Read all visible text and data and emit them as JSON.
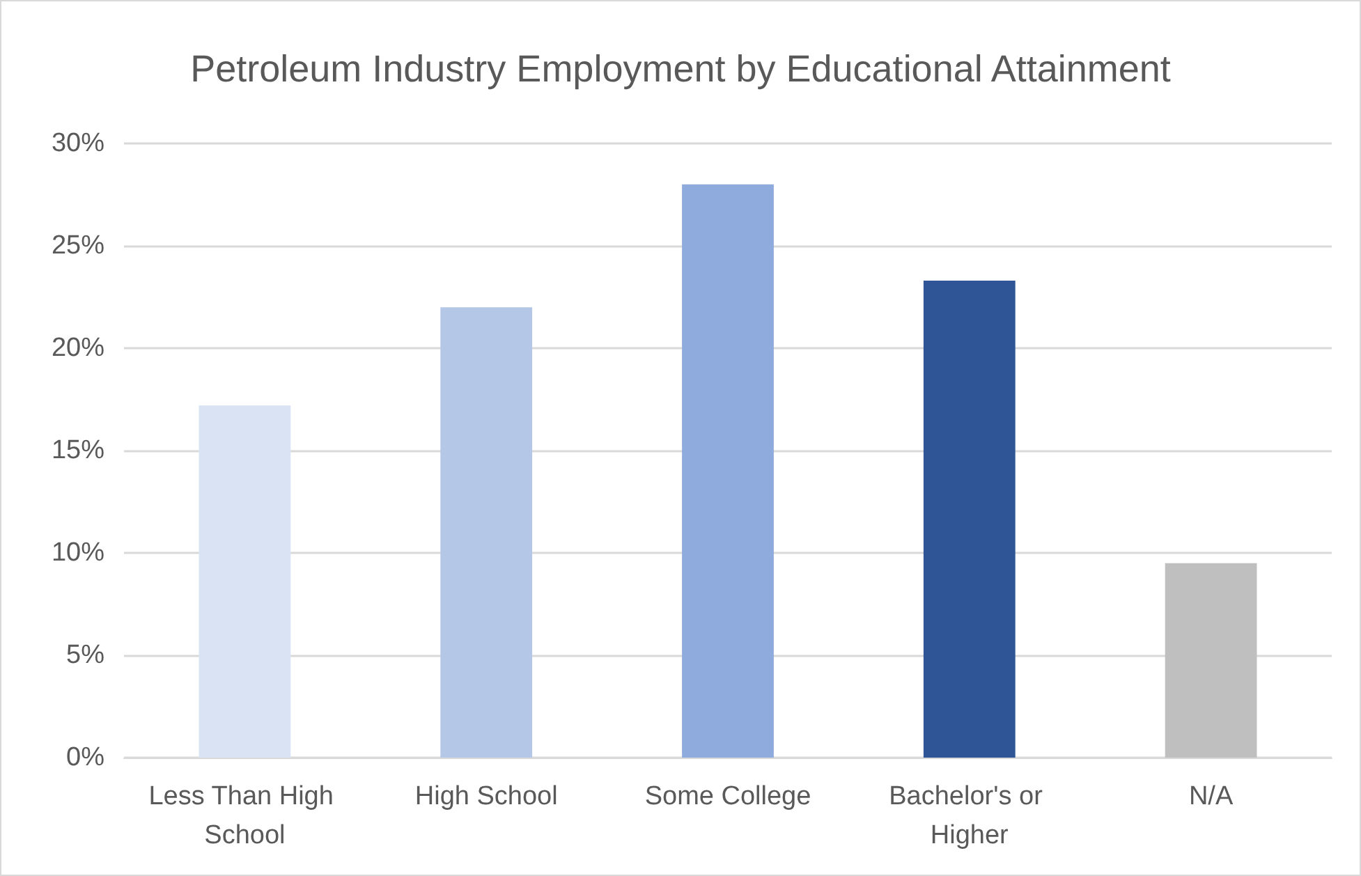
{
  "chart_data": {
    "type": "bar",
    "title": "Petroleum Industry Employment by Educational Attainment",
    "categories": [
      "Less Than High School",
      "High School",
      "Some College",
      "Bachelor's or Higher",
      "N/A"
    ],
    "values": [
      17.2,
      22.0,
      28.0,
      23.3,
      9.5
    ],
    "colors": [
      "#dae3f3",
      "#b4c7e7",
      "#8faadc",
      "#2f5597",
      "#bfbfbf"
    ],
    "ylim": [
      0,
      30
    ],
    "yticks": [
      {
        "value": 0,
        "label": "0%"
      },
      {
        "value": 5,
        "label": "5%"
      },
      {
        "value": 10,
        "label": "10%"
      },
      {
        "value": 15,
        "label": "15%"
      },
      {
        "value": 20,
        "label": "20%"
      },
      {
        "value": 25,
        "label": "25%"
      },
      {
        "value": 30,
        "label": "30%"
      }
    ],
    "grid": "y"
  }
}
